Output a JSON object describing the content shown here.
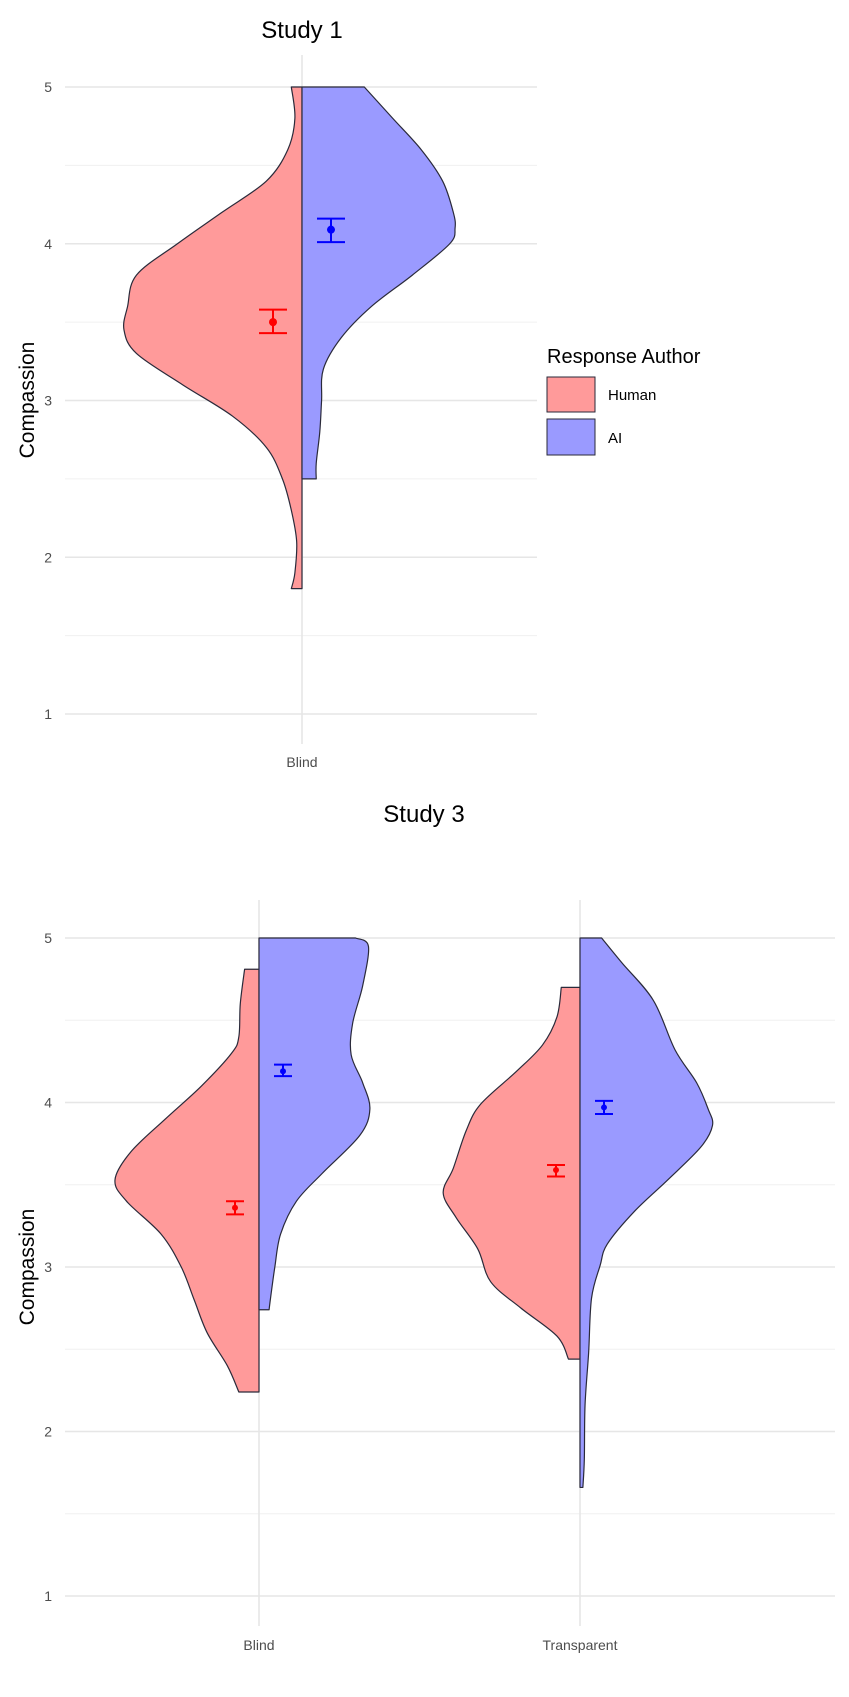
{
  "colors": {
    "human_fill": "#ff9a9a",
    "ai_fill": "#9a9aff",
    "human_point": "#ff0000",
    "ai_point": "#0000ff",
    "outline": "#2a2a3a",
    "grid": "#ebebeb"
  },
  "legend": {
    "title": "Response Author",
    "placement": "right",
    "entries": [
      {
        "label": "Human",
        "color": "#ff9a9a"
      },
      {
        "label": "AI",
        "color": "#9a9aff"
      }
    ]
  },
  "chart_data": [
    {
      "type": "split-violin",
      "title": "Study 1",
      "xlabel": "",
      "ylabel": "Compassion",
      "ylim": [
        1,
        5
      ],
      "yticks": [
        "1",
        "2",
        "3",
        "4",
        "5"
      ],
      "categories": [
        "Blind"
      ],
      "grid": true,
      "groups": [
        {
          "category": "Blind",
          "human": {
            "mean": 3.5,
            "ci": [
              3.43,
              3.58
            ],
            "density": [
              [
                5.0,
                0.06
              ],
              [
                4.8,
                0.04
              ],
              [
                4.6,
                0.08
              ],
              [
                4.4,
                0.2
              ],
              [
                4.2,
                0.45
              ],
              [
                4.0,
                0.7
              ],
              [
                3.8,
                0.93
              ],
              [
                3.6,
                0.98
              ],
              [
                3.45,
                1.0
              ],
              [
                3.3,
                0.93
              ],
              [
                3.1,
                0.67
              ],
              [
                2.9,
                0.39
              ],
              [
                2.7,
                0.2
              ],
              [
                2.5,
                0.11
              ],
              [
                2.3,
                0.06
              ],
              [
                2.1,
                0.03
              ],
              [
                1.9,
                0.04
              ],
              [
                1.8,
                0.06
              ]
            ]
          },
          "ai": {
            "mean": 4.09,
            "ci": [
              4.01,
              4.16
            ],
            "density": [
              [
                5.0,
                0.35
              ],
              [
                4.8,
                0.51
              ],
              [
                4.6,
                0.67
              ],
              [
                4.4,
                0.79
              ],
              [
                4.2,
                0.85
              ],
              [
                4.1,
                0.86
              ],
              [
                4.0,
                0.83
              ],
              [
                3.8,
                0.62
              ],
              [
                3.6,
                0.39
              ],
              [
                3.4,
                0.22
              ],
              [
                3.2,
                0.12
              ],
              [
                3.0,
                0.11
              ],
              [
                2.8,
                0.1
              ],
              [
                2.6,
                0.08
              ],
              [
                2.5,
                0.08
              ]
            ]
          }
        }
      ]
    },
    {
      "type": "split-violin",
      "title": "Study 3",
      "xlabel": "",
      "ylabel": "Compassion",
      "ylim": [
        1,
        5
      ],
      "yticks": [
        "1",
        "2",
        "3",
        "4",
        "5"
      ],
      "categories": [
        "Blind",
        "Transparent"
      ],
      "grid": true,
      "groups": [
        {
          "category": "Blind",
          "human": {
            "mean": 3.36,
            "ci": [
              3.32,
              3.4
            ],
            "density": [
              [
                4.81,
                0.1
              ],
              [
                4.6,
                0.13
              ],
              [
                4.4,
                0.14
              ],
              [
                4.3,
                0.19
              ],
              [
                4.1,
                0.4
              ],
              [
                3.9,
                0.65
              ],
              [
                3.7,
                0.89
              ],
              [
                3.53,
                1.0
              ],
              [
                3.4,
                0.92
              ],
              [
                3.2,
                0.68
              ],
              [
                3.0,
                0.54
              ],
              [
                2.8,
                0.45
              ],
              [
                2.6,
                0.36
              ],
              [
                2.4,
                0.22
              ],
              [
                2.24,
                0.14
              ]
            ]
          },
          "ai": {
            "mean": 4.19,
            "ci": [
              4.16,
              4.23
            ],
            "density": [
              [
                5.0,
                0.67
              ],
              [
                4.95,
                0.76
              ],
              [
                4.71,
                0.72
              ],
              [
                4.48,
                0.65
              ],
              [
                4.29,
                0.64
              ],
              [
                4.12,
                0.72
              ],
              [
                3.96,
                0.77
              ],
              [
                3.8,
                0.7
              ],
              [
                3.57,
                0.44
              ],
              [
                3.4,
                0.26
              ],
              [
                3.2,
                0.15
              ],
              [
                3.0,
                0.11
              ],
              [
                2.81,
                0.08
              ],
              [
                2.74,
                0.07
              ]
            ]
          }
        },
        {
          "category": "Transparent",
          "human": {
            "mean": 3.59,
            "ci": [
              3.55,
              3.62
            ],
            "density": [
              [
                4.7,
                0.13
              ],
              [
                4.52,
                0.16
              ],
              [
                4.35,
                0.26
              ],
              [
                4.19,
                0.44
              ],
              [
                3.99,
                0.69
              ],
              [
                3.83,
                0.79
              ],
              [
                3.6,
                0.88
              ],
              [
                3.45,
                0.95
              ],
              [
                3.3,
                0.86
              ],
              [
                3.11,
                0.71
              ],
              [
                2.91,
                0.62
              ],
              [
                2.75,
                0.41
              ],
              [
                2.58,
                0.16
              ],
              [
                2.44,
                0.08
              ]
            ]
          },
          "ai": {
            "mean": 3.97,
            "ci": [
              3.93,
              4.01
            ],
            "density": [
              [
                5.0,
                0.15
              ],
              [
                4.85,
                0.29
              ],
              [
                4.62,
                0.51
              ],
              [
                4.32,
                0.66
              ],
              [
                4.12,
                0.81
              ],
              [
                3.96,
                0.89
              ],
              [
                3.86,
                0.92
              ],
              [
                3.73,
                0.84
              ],
              [
                3.53,
                0.61
              ],
              [
                3.34,
                0.38
              ],
              [
                3.14,
                0.19
              ],
              [
                3.01,
                0.14
              ],
              [
                2.81,
                0.08
              ],
              [
                2.48,
                0.06
              ],
              [
                2.16,
                0.035
              ],
              [
                1.83,
                0.03
              ],
              [
                1.66,
                0.02
              ]
            ]
          }
        }
      ]
    }
  ]
}
